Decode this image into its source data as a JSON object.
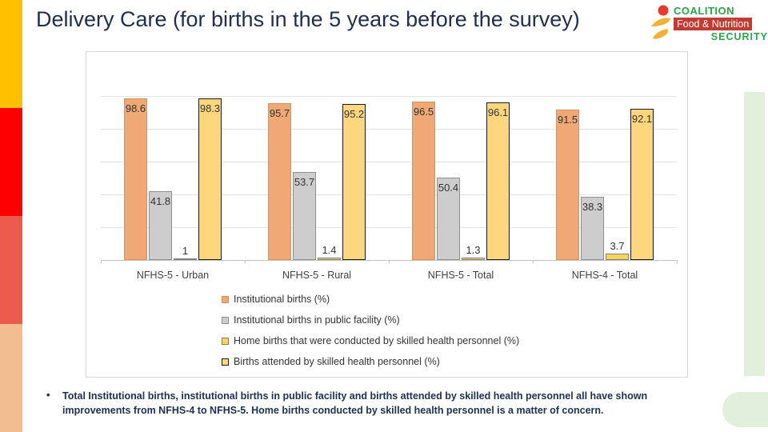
{
  "title": "Delivery Care (for births in the 5 years before the survey)",
  "logo": {
    "line1": "COALITION",
    "line2": "Food & Nutrition",
    "line3": "SECURITY",
    "green": "#29A54B",
    "red_box": "#C23B33",
    "head_red": "#E8392F",
    "swoosh_yellow": "#F2B233"
  },
  "chart_data": {
    "type": "bar",
    "title": "",
    "categories": [
      "NFHS-5 - Urban",
      "NFHS-5 - Rural",
      "NFHS-5 - Total",
      "NFHS-4 - Total"
    ],
    "series": [
      {
        "name": "Institutional births (%)",
        "values": [
          98.6,
          95.7,
          96.5,
          91.5
        ],
        "color": "#F0A875",
        "border": "#D98E5C"
      },
      {
        "name": "Institutional births in public facility (%)",
        "values": [
          41.8,
          53.7,
          50.4,
          38.3
        ],
        "color": "#CDCDCD",
        "border": "#8F8F8F"
      },
      {
        "name": "Home births that were conducted by skilled health personnel (%)",
        "values": [
          1,
          1.4,
          1.3,
          3.7
        ],
        "color": "#FFD35C",
        "border": "#7F7F7F"
      },
      {
        "name": "Births attended by skilled health personnel (%)",
        "values": [
          98.3,
          95.2,
          96.1,
          92.1
        ],
        "color": "#FDD77E",
        "border": "#1A1A1A"
      }
    ],
    "xlabel": "",
    "ylabel": "",
    "ylim": [
      0,
      100
    ],
    "gridlines": [
      20,
      40,
      60,
      80,
      100
    ],
    "grid": true,
    "y_axis_labels_visible": false,
    "legend_position": "bottom",
    "data_labels": true
  },
  "note": {
    "marker": "•",
    "text": "Total Institutional births, institutional births in public facility and births attended by skilled health personnel all have shown improvements from NFHS-4 to NFHS-5. Home births conducted by skilled health personnel is a matter of concern."
  },
  "decor": {
    "left_strip_colors": [
      "#FFC000",
      "#FE0000",
      "#EB5A4D",
      "#F3BE8F"
    ],
    "right_shape_color": "#E2EFDA"
  }
}
